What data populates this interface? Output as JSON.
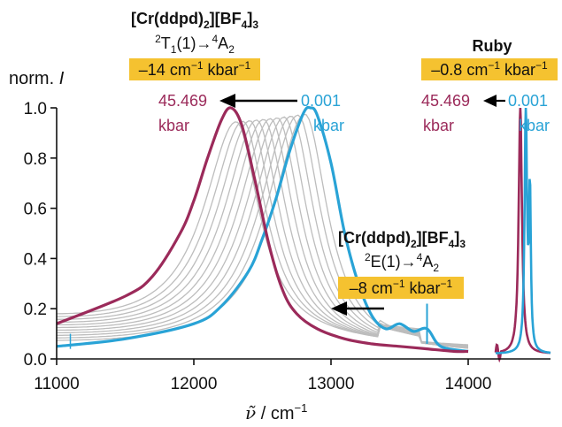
{
  "chart_data": {
    "type": "line",
    "ylabel_text": "norm. ",
    "ylabel_italic": "I",
    "xlabel_symbol": "ν̃",
    "xlabel_text": " / cm",
    "xlabel_sup": "−1",
    "xlim": [
      11000,
      14600
    ],
    "ylim": [
      0.0,
      1.0
    ],
    "x_ticks": [
      "11000",
      "12000",
      "13000",
      "14000"
    ],
    "x_tick_values": [
      11000,
      12000,
      13000,
      14000
    ],
    "y_ticks": [
      "0.0",
      "0.2",
      "0.4",
      "0.6",
      "0.8",
      "1.0"
    ],
    "y_tick_values": [
      0.0,
      0.2,
      0.4,
      0.6,
      0.8,
      1.0
    ],
    "colors": {
      "low_pressure": "#29a3d6",
      "high_pressure": "#9b2a5a",
      "intermediate": "#bdbdbd",
      "highlight": "#f5c230",
      "arrow": "#000000"
    },
    "broad_band": {
      "low_pressure_peak": 12850,
      "high_pressure_peak": 12270,
      "intermediate_peaks": [
        12310,
        12360,
        12410,
        12460,
        12510,
        12560,
        12610,
        12660,
        12710,
        12760,
        12810
      ],
      "baseline_at_11000_low": 0.05,
      "baseline_at_11000_high": 0.14
    },
    "series": [
      {
        "key": "low",
        "x": [
          11000,
          11500,
          12000,
          12200,
          12400,
          12500,
          12600,
          12700,
          12800,
          12850,
          12900,
          13000,
          13100,
          13200,
          13300,
          13400,
          13500,
          13600,
          13700,
          13800,
          14000
        ],
        "y": [
          0.05,
          0.08,
          0.14,
          0.21,
          0.35,
          0.48,
          0.64,
          0.83,
          0.98,
          1.0,
          0.97,
          0.78,
          0.5,
          0.3,
          0.17,
          0.12,
          0.14,
          0.11,
          0.12,
          0.05,
          0.03
        ]
      },
      {
        "key": "high",
        "x": [
          11000,
          11500,
          11700,
          11900,
          12000,
          12100,
          12200,
          12270,
          12350,
          12450,
          12550,
          12650,
          12750,
          12900,
          13100,
          13300,
          13500,
          13700,
          13900,
          14000
        ],
        "y": [
          0.14,
          0.25,
          0.33,
          0.5,
          0.63,
          0.8,
          0.95,
          1.0,
          0.93,
          0.7,
          0.45,
          0.27,
          0.18,
          0.12,
          0.08,
          0.06,
          0.05,
          0.04,
          0.03,
          0.03
        ]
      }
    ],
    "ruby": {
      "low_peak_x": 14420,
      "high_peak_x": 14380,
      "low_shoulder_x": 14450,
      "low_shoulder_y": 0.62
    },
    "annotations": {
      "t1_title": "[Cr(ddpd)",
      "t1_sub2": "2",
      "t1_title_b": "][BF",
      "t1_sub4": "4",
      "t1_title_c": "]",
      "t1_sub3": "3",
      "t1_sup2": "2",
      "t1_trans_a": "T",
      "t1_sub1": "1",
      "t1_trans_b": "(1)→",
      "t1_sup4": "4",
      "t1_trans_c": "A",
      "t1_sub_a2": "2",
      "t1_shift_a": "–14 cm",
      "t1_shift_sup": "−1",
      "t1_shift_b": " kbar",
      "t1_shift_sup2": "−1",
      "left_pressure": "45.469",
      "left_unit": "kbar",
      "right_pressure": "0.001",
      "right_unit": "kbar",
      "ruby_title": "Ruby",
      "ruby_shift_a": "–0.8 cm",
      "ruby_shift_sup": "−1",
      "ruby_shift_b": " kbar",
      "ruby_shift_sup2": "−1",
      "ruby_left_pressure": "45.469",
      "ruby_left_unit": "kbar",
      "ruby_right_pressure": "0.001",
      "ruby_right_unit": "kbar",
      "e_title": "[Cr(ddpd)",
      "e_sub2": "2",
      "e_title_b": "][BF",
      "e_sub4": "4",
      "e_title_c": "]",
      "e_sub3": "3",
      "e_sup2": "2",
      "e_trans_a": "E(1)→",
      "e_sup4": "4",
      "e_trans_b": "A",
      "e_sub_a2": "2",
      "e_shift_a": "–8 cm",
      "e_shift_sup": "−1",
      "e_shift_b": " kbar",
      "e_shift_sup2": "−1"
    }
  }
}
